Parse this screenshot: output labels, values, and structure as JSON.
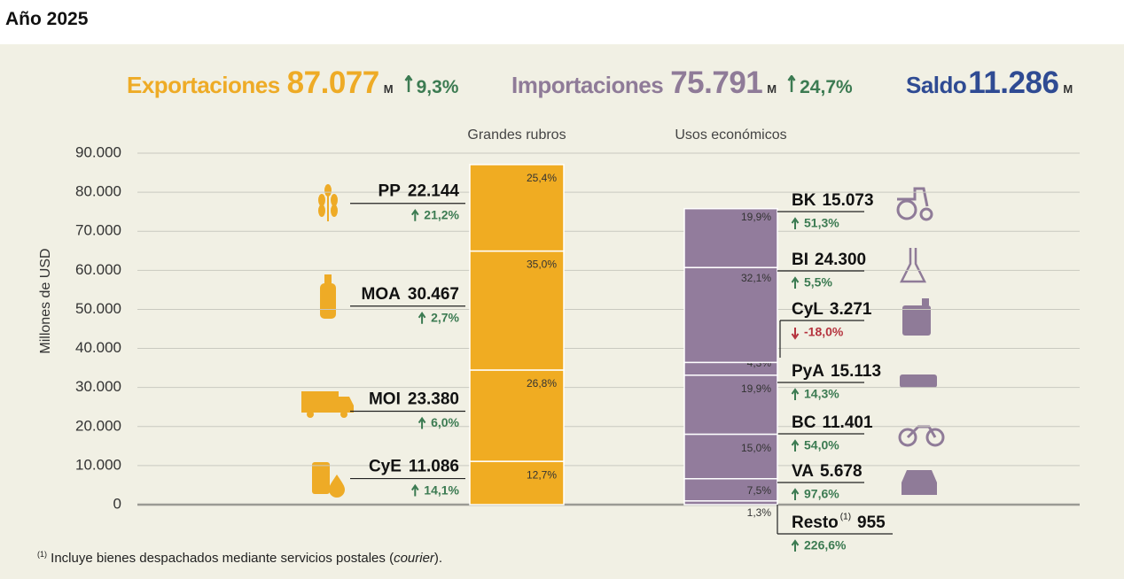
{
  "header": {
    "title": "Año 2025"
  },
  "summary": [
    {
      "label": "Exportaciones",
      "value": "87.077",
      "unit": "M",
      "change": "9,3%",
      "direction": "up",
      "color": "#eeab26"
    },
    {
      "label": "Importaciones",
      "value": "75.791",
      "unit": "M",
      "change": "24,7%",
      "direction": "up",
      "color": "#8f7b98"
    },
    {
      "label": "Saldo",
      "value": "11.286",
      "unit": "M",
      "color": "#2f4b93"
    }
  ],
  "chart_data": {
    "type": "stacked-bar",
    "ylabel": "Millones de USD",
    "ylim": [
      0,
      90000
    ],
    "yticks": [
      0,
      {
        "value": 10000,
        "label": "10.000"
      },
      {
        "value": 20000,
        "label": "20.000"
      },
      {
        "value": 30000,
        "label": "30.000"
      },
      {
        "value": 40000,
        "label": "40.000"
      },
      {
        "value": 50000,
        "label": "50.000"
      },
      {
        "value": 60000,
        "label": "60.000"
      },
      {
        "value": 70000,
        "label": "70.000"
      },
      {
        "value": 80000,
        "label": "80.000"
      },
      {
        "value": 90000,
        "label": "90.000"
      }
    ],
    "grid": true,
    "bars": [
      {
        "name": "Grandes rubros",
        "color": "#f0ac22",
        "segments": [
          {
            "name": "CyE",
            "value": 11086,
            "value_label": "11.086",
            "share": "12,7%",
            "change": "14,1%",
            "direction": "up"
          },
          {
            "name": "MOI",
            "value": 23380,
            "value_label": "23.380",
            "share": "26,8%",
            "change": "6,0%",
            "direction": "up"
          },
          {
            "name": "MOA",
            "value": 30467,
            "value_label": "30.467",
            "share": "35,0%",
            "change": "2,7%",
            "direction": "up"
          },
          {
            "name": "PP",
            "value": 22144,
            "value_label": "22.144",
            "share": "25,4%",
            "change": "21,2%",
            "direction": "up"
          }
        ]
      },
      {
        "name": "Usos económicos",
        "color": "#927c9c",
        "segments": [
          {
            "name": "Resto",
            "note": "(1)",
            "value": 955,
            "value_label": "955",
            "share": "1,3%",
            "change": "226,6%",
            "direction": "up"
          },
          {
            "name": "VA",
            "value": 5678,
            "value_label": "5.678",
            "share": "7,5%",
            "change": "97,6%",
            "direction": "up"
          },
          {
            "name": "BC",
            "value": 11401,
            "value_label": "11.401",
            "share": "15,0%",
            "change": "54,0%",
            "direction": "up"
          },
          {
            "name": "PyA",
            "value": 15113,
            "value_label": "15.113",
            "share": "19,9%",
            "change": "14,3%",
            "direction": "up"
          },
          {
            "name": "CyL",
            "value": 3271,
            "value_label": "3.271",
            "share": "4,3%",
            "change": "-18,0%",
            "direction": "down"
          },
          {
            "name": "BI",
            "value": 24300,
            "value_label": "24.300",
            "share": "32,1%",
            "change": "5,5%",
            "direction": "up"
          },
          {
            "name": "BK",
            "value": 15073,
            "value_label": "15.073",
            "share": "19,9%",
            "change": "51,3%",
            "direction": "up"
          }
        ]
      }
    ]
  },
  "footnote": {
    "marker": "(1)",
    "text": "Incluye bienes despachados mediante servicios postales (",
    "emphasis": "courier",
    "end": ")."
  }
}
